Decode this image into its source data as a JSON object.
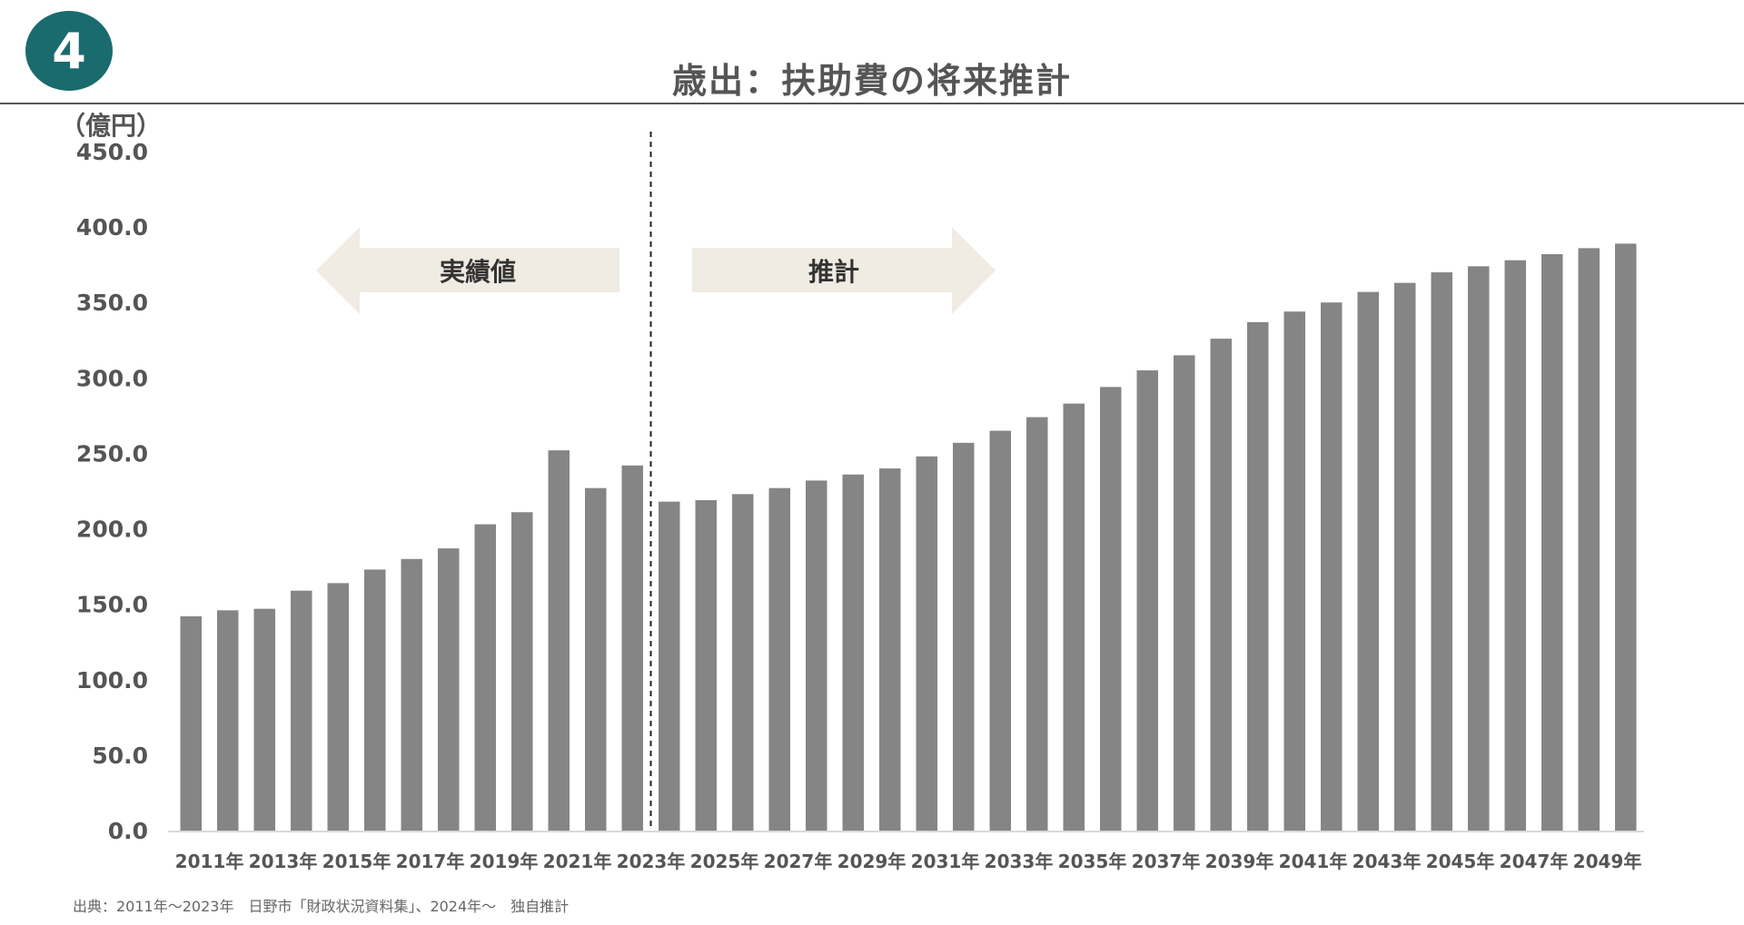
{
  "badge": "4",
  "title": "歳出：扶助費の将来推計",
  "source": "出典：2011年～2023年　日野市「財政状況資料集」、2024年～　独自推計",
  "annotations": {
    "actual_label": "実績値",
    "forecast_label": "推計"
  },
  "colors": {
    "bar": "#858585",
    "badge": "#1a6b6e",
    "arrow": "#f0ebe3",
    "text": "#555555"
  },
  "chart_data": {
    "type": "bar",
    "title": "歳出：扶助費の将来推計",
    "ylabel": "（億円）",
    "xlabel": "",
    "ylim": [
      0,
      450
    ],
    "yticks": [
      "0.0",
      "50.0",
      "100.0",
      "150.0",
      "200.0",
      "250.0",
      "300.0",
      "350.0",
      "400.0",
      "450.0"
    ],
    "grid": false,
    "divider_between": [
      "2023年",
      "2024年"
    ],
    "categories": [
      "2011年",
      "2012年",
      "2013年",
      "2014年",
      "2015年",
      "2016年",
      "2017年",
      "2018年",
      "2019年",
      "2020年",
      "2021年",
      "2022年",
      "2023年",
      "2024年",
      "2025年",
      "2026年",
      "2027年",
      "2028年",
      "2029年",
      "2030年",
      "2031年",
      "2032年",
      "2033年",
      "2034年",
      "2035年",
      "2036年",
      "2037年",
      "2038年",
      "2039年",
      "2040年",
      "2041年",
      "2042年",
      "2043年",
      "2044年",
      "2045年",
      "2046年",
      "2047年",
      "2048年",
      "2049年",
      "2050年"
    ],
    "visible_tick_labels": [
      "2011年",
      "2013年",
      "2015年",
      "2017年",
      "2019年",
      "2021年",
      "2023年",
      "2025年",
      "2027年",
      "2029年",
      "2031年",
      "2033年",
      "2035年",
      "2037年",
      "2039年",
      "2041年",
      "2043年",
      "2045年",
      "2047年",
      "2049年"
    ],
    "values": [
      142,
      146,
      147,
      159,
      164,
      173,
      180,
      187,
      203,
      211,
      252,
      227,
      242,
      218,
      219,
      223,
      227,
      232,
      236,
      240,
      248,
      257,
      265,
      274,
      283,
      294,
      305,
      315,
      326,
      337,
      344,
      350,
      357,
      363,
      370,
      374,
      378,
      382,
      386,
      389
    ]
  }
}
